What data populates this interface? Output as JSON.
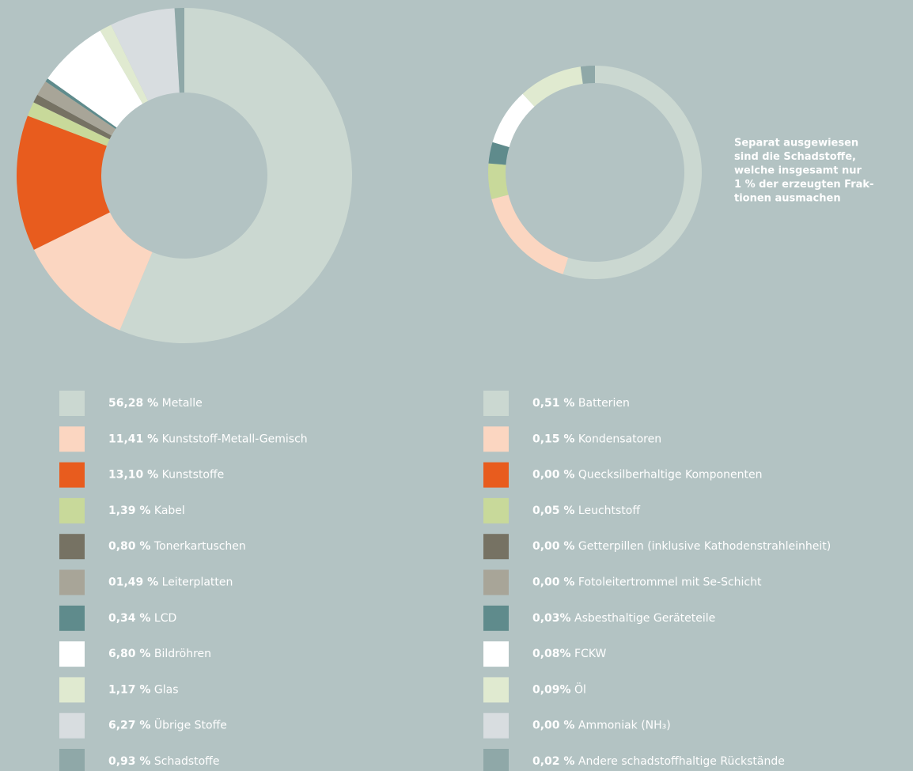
{
  "chart_data": [
    {
      "type": "donut",
      "categories": [
        "Metalle",
        "Kunststoff-Metall-Gemisch",
        "Kunststoffe",
        "Kabel",
        "Tonerkartuschen",
        "Leiterplatten",
        "LCD",
        "Bildröhren",
        "Glas",
        "Übrige Stoffe",
        "Schadstoffe"
      ],
      "values": [
        56.28,
        11.41,
        13.1,
        1.39,
        0.8,
        1.49,
        0.34,
        6.8,
        1.17,
        6.27,
        0.93
      ],
      "value_labels": [
        "56,28 %",
        "11,41 %",
        "13,10 %",
        "1,39 %",
        "0,80 %",
        "01,49 %",
        "0,34 %",
        "6,80 %",
        "1,17 %",
        "6,27 %",
        "0,93 %"
      ],
      "colors": [
        "#cbd8d1",
        "#fbd6c1",
        "#e85c1e",
        "#c8d99a",
        "#767263",
        "#a8a598",
        "#5f8b8c",
        "#ffffff",
        "#e0ead0",
        "#d8dde0",
        "#8fa8a8"
      ]
    },
    {
      "type": "donut",
      "categories": [
        "Batterien",
        "Kondensatoren",
        "Quecksilberhaltige Komponenten",
        "Leuchtstoff",
        "Getterpillen (inklusive Kathodenstrahleinheit)",
        "Fotoleitertrommel mit Se-Schicht",
        "Asbesthaltige Geräteteile",
        "FCKW",
        "Öl",
        "Ammoniak (NH₃)",
        "Andere schadstoffhaltige Rückstände"
      ],
      "values": [
        0.51,
        0.15,
        0.0,
        0.05,
        0.0,
        0.0,
        0.03,
        0.08,
        0.09,
        0.0,
        0.02
      ],
      "value_labels": [
        "0,51 %",
        "0,15 %",
        "0,00 %",
        "0,05 %",
        "0,00 %",
        "0,00 %",
        "0,03%",
        "0,08%",
        "0,09%",
        "0,00 %",
        "0,02 %"
      ],
      "colors": [
        "#cbd8d1",
        "#fbd6c1",
        "#e85c1e",
        "#c8d99a",
        "#767263",
        "#a8a598",
        "#5f8b8c",
        "#ffffff",
        "#e0ead0",
        "#d8dde0",
        "#8fa8a8"
      ],
      "annotation": [
        "Separat ausgewiesen",
        "sind die Schadstoffe,",
        "welche insgesamt nur",
        "1 % der erzeugten Frak-",
        "tionen ausmachen"
      ]
    }
  ]
}
